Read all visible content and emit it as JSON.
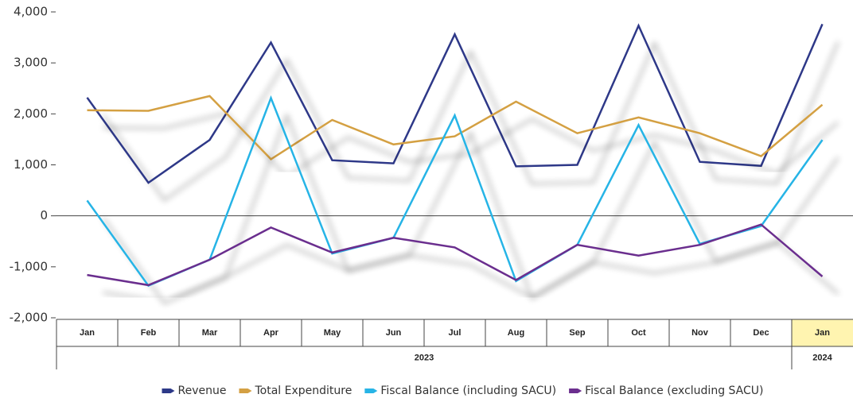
{
  "chart_data": {
    "type": "line",
    "groups": [
      {
        "label": "2023",
        "categories": [
          "Jan",
          "Feb",
          "Mar",
          "Apr",
          "May",
          "Jun",
          "Jul",
          "Aug",
          "Sep",
          "Oct",
          "Nov",
          "Dec"
        ]
      },
      {
        "label": "2024",
        "categories": [
          "Jan"
        ],
        "highlight": "#fff4b0"
      }
    ],
    "series": [
      {
        "name": "Revenue",
        "color": "#2d3988",
        "values": [
          2320,
          650,
          1490,
          3400,
          1090,
          1030,
          3560,
          970,
          1000,
          3730,
          1060,
          980,
          3760
        ]
      },
      {
        "name": "Total Expenditure",
        "color": "#d4a043",
        "values": [
          2070,
          2060,
          2350,
          1110,
          1880,
          1400,
          1560,
          2240,
          1620,
          1930,
          1620,
          1170,
          2180
        ]
      },
      {
        "name": "Fiscal Balance (including SACU)",
        "color": "#27b4e6",
        "values": [
          300,
          -1370,
          -860,
          2310,
          -740,
          -430,
          1970,
          -1280,
          -570,
          1780,
          -550,
          -200,
          1490
        ]
      },
      {
        "name": "Fiscal Balance (excluding SACU)",
        "color": "#6b2e8e",
        "values": [
          -1160,
          -1360,
          -860,
          -230,
          -720,
          -430,
          -620,
          -1260,
          -570,
          -780,
          -570,
          -170,
          -1190
        ]
      }
    ],
    "ylim": [
      -2000,
      4000
    ],
    "yticks": [
      {
        "value": -2000,
        "label": "-2,000"
      },
      {
        "value": -1000,
        "label": "-1,000"
      },
      0,
      {
        "value": 1000,
        "label": "1,000"
      },
      {
        "value": 2000,
        "label": "2,000"
      },
      {
        "value": 3000,
        "label": "3,000"
      },
      {
        "value": 4000,
        "label": "4,000"
      }
    ],
    "legend": "bottom"
  }
}
